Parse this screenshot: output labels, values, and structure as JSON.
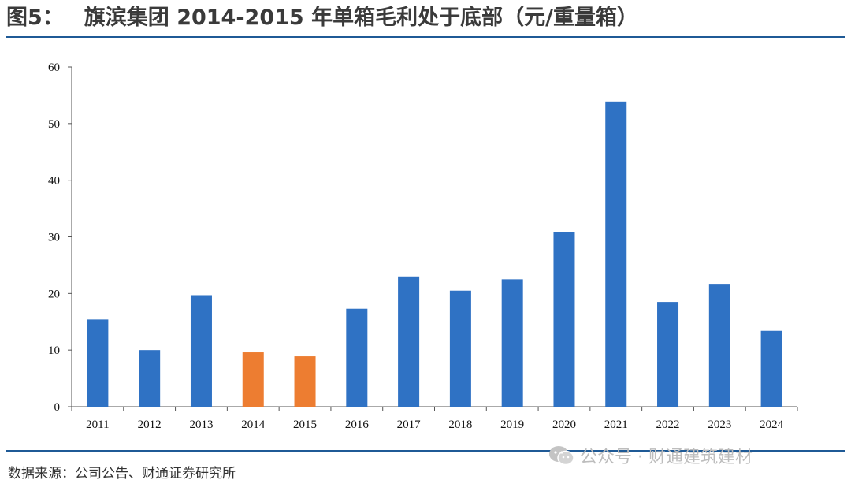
{
  "header": {
    "figure_label": "图5：",
    "title": "旗滨集团 2014-2015 年单箱毛利处于底部（元/重量箱）"
  },
  "footer": {
    "source": "数据来源：公司公告、财通证券研究所",
    "watermark": "公众号 · 财通建筑建材"
  },
  "icons": {
    "watermark_icon": "wechat-icon"
  },
  "colors": {
    "primary_bar": "#2f72c4",
    "highlight_bar": "#ed7d31",
    "rule": "#1f5a96"
  },
  "chart_data": {
    "type": "bar",
    "title": "",
    "xlabel": "",
    "ylabel": "",
    "categories": [
      "2011",
      "2012",
      "2013",
      "2014",
      "2015",
      "2016",
      "2017",
      "2018",
      "2019",
      "2020",
      "2021",
      "2022",
      "2023",
      "2024"
    ],
    "values": [
      15.4,
      10.0,
      19.7,
      9.6,
      8.9,
      17.3,
      23.0,
      20.5,
      22.5,
      30.9,
      53.9,
      18.5,
      21.7,
      13.4
    ],
    "highlight_categories": [
      "2014",
      "2015"
    ],
    "ylim": [
      0,
      60
    ],
    "yticks": [
      "0",
      "10",
      "20",
      "30",
      "40",
      "50",
      "60"
    ],
    "grid": false,
    "legend": "none"
  }
}
